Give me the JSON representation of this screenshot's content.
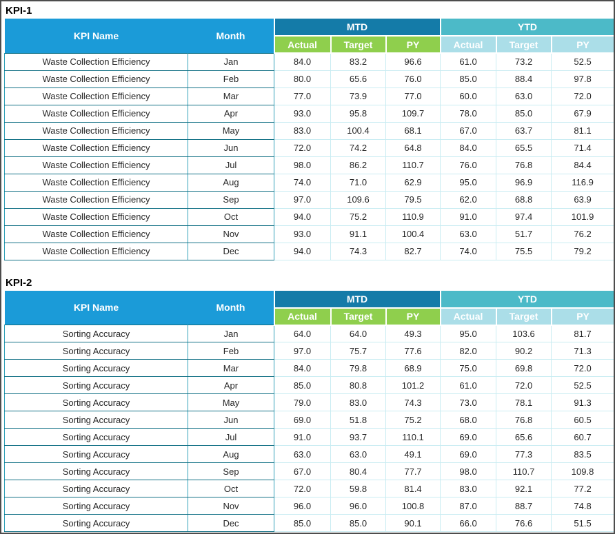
{
  "colors": {
    "header_blue": "#1b9bd8",
    "mtd_band": "#147ba8",
    "ytd_band": "#4cbac8",
    "mtd_sub_green": "#8fcf4d",
    "ytd_sub_blue": "#abdee8",
    "grid_light": "#c9ecf2",
    "grid_teal": "#2e9fb7",
    "grid_dark": "#0f6f84",
    "text_dark": "#262626",
    "outer_border": "#4d4d4d"
  },
  "headers": {
    "kpi_name": "KPI Name",
    "month": "Month",
    "mtd": "MTD",
    "ytd": "YTD",
    "subcolumns": [
      "Actual",
      "Target",
      "PY"
    ]
  },
  "chart_data": [
    {
      "type": "table",
      "title": "KPI-1",
      "kpi_name": "Waste Collection Efficiency",
      "columns": [
        "KPI Name",
        "Month",
        "MTD Actual",
        "MTD Target",
        "MTD PY",
        "YTD Actual",
        "YTD Target",
        "YTD PY"
      ],
      "rows": [
        [
          "Waste Collection Efficiency",
          "Jan",
          84.0,
          83.2,
          96.6,
          61.0,
          73.2,
          52.5
        ],
        [
          "Waste Collection Efficiency",
          "Feb",
          80.0,
          65.6,
          76.0,
          85.0,
          88.4,
          97.8
        ],
        [
          "Waste Collection Efficiency",
          "Mar",
          77.0,
          73.9,
          77.0,
          60.0,
          63.0,
          72.0
        ],
        [
          "Waste Collection Efficiency",
          "Apr",
          93.0,
          95.8,
          109.7,
          78.0,
          85.0,
          67.9
        ],
        [
          "Waste Collection Efficiency",
          "May",
          83.0,
          100.4,
          68.1,
          67.0,
          63.7,
          81.1
        ],
        [
          "Waste Collection Efficiency",
          "Jun",
          72.0,
          74.2,
          64.8,
          84.0,
          65.5,
          71.4
        ],
        [
          "Waste Collection Efficiency",
          "Jul",
          98.0,
          86.2,
          110.7,
          76.0,
          76.8,
          84.4
        ],
        [
          "Waste Collection Efficiency",
          "Aug",
          74.0,
          71.0,
          62.9,
          95.0,
          96.9,
          116.9
        ],
        [
          "Waste Collection Efficiency",
          "Sep",
          97.0,
          109.6,
          79.5,
          62.0,
          68.8,
          63.9
        ],
        [
          "Waste Collection Efficiency",
          "Oct",
          94.0,
          75.2,
          110.9,
          91.0,
          97.4,
          101.9
        ],
        [
          "Waste Collection Efficiency",
          "Nov",
          93.0,
          91.1,
          100.4,
          63.0,
          51.7,
          76.2
        ],
        [
          "Waste Collection Efficiency",
          "Dec",
          94.0,
          74.3,
          82.7,
          74.0,
          75.5,
          79.2
        ]
      ]
    },
    {
      "type": "table",
      "title": "KPI-2",
      "kpi_name": "Sorting Accuracy",
      "columns": [
        "KPI Name",
        "Month",
        "MTD Actual",
        "MTD Target",
        "MTD PY",
        "YTD Actual",
        "YTD Target",
        "YTD PY"
      ],
      "rows": [
        [
          "Sorting Accuracy",
          "Jan",
          64.0,
          64.0,
          49.3,
          95.0,
          103.6,
          81.7
        ],
        [
          "Sorting Accuracy",
          "Feb",
          97.0,
          75.7,
          77.6,
          82.0,
          90.2,
          71.3
        ],
        [
          "Sorting Accuracy",
          "Mar",
          84.0,
          79.8,
          68.9,
          75.0,
          69.8,
          72.0
        ],
        [
          "Sorting Accuracy",
          "Apr",
          85.0,
          80.8,
          101.2,
          61.0,
          72.0,
          52.5
        ],
        [
          "Sorting Accuracy",
          "May",
          79.0,
          83.0,
          74.3,
          73.0,
          78.1,
          91.3
        ],
        [
          "Sorting Accuracy",
          "Jun",
          69.0,
          51.8,
          75.2,
          68.0,
          76.8,
          60.5
        ],
        [
          "Sorting Accuracy",
          "Jul",
          91.0,
          93.7,
          110.1,
          69.0,
          65.6,
          60.7
        ],
        [
          "Sorting Accuracy",
          "Aug",
          63.0,
          63.0,
          49.1,
          69.0,
          77.3,
          83.5
        ],
        [
          "Sorting Accuracy",
          "Sep",
          67.0,
          80.4,
          77.7,
          98.0,
          110.7,
          109.8
        ],
        [
          "Sorting Accuracy",
          "Oct",
          72.0,
          59.8,
          81.4,
          83.0,
          92.1,
          77.2
        ],
        [
          "Sorting Accuracy",
          "Nov",
          96.0,
          96.0,
          100.8,
          87.0,
          88.7,
          74.8
        ],
        [
          "Sorting Accuracy",
          "Dec",
          85.0,
          85.0,
          90.1,
          66.0,
          76.6,
          51.5
        ]
      ]
    }
  ]
}
